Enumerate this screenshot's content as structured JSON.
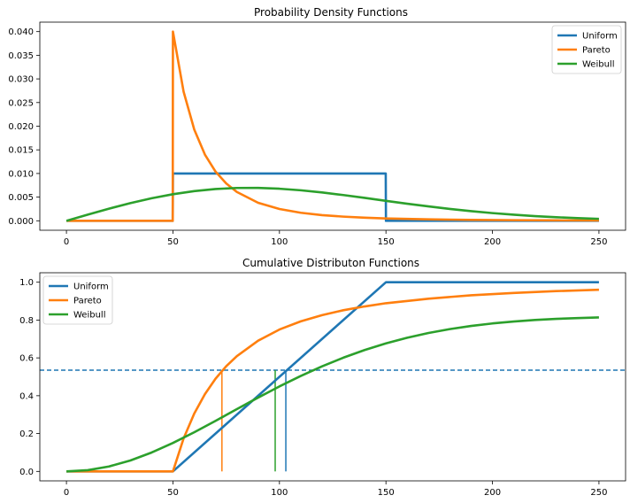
{
  "chart_data": [
    {
      "type": "line",
      "title": "Probability Density Functions",
      "xlabel": "",
      "ylabel": "",
      "xlim": [
        -12.5,
        262.5
      ],
      "ylim": [
        -0.002,
        0.042
      ],
      "xticks": [
        0,
        50,
        100,
        150,
        200,
        250
      ],
      "xtick_labels": [
        "0",
        "50",
        "100",
        "150",
        "200",
        "250"
      ],
      "yticks": [
        0.0,
        0.005,
        0.01,
        0.015,
        0.02,
        0.025,
        0.03,
        0.035,
        0.04
      ],
      "ytick_labels": [
        "0.000",
        "0.005",
        "0.010",
        "0.015",
        "0.020",
        "0.025",
        "0.030",
        "0.035",
        "0.040"
      ],
      "grid": false,
      "legend": "top-right",
      "series": [
        {
          "name": "Uniform",
          "color": "#1f77b4",
          "x": [
            0,
            49.9,
            50,
            100,
            149.9,
            150,
            200,
            250
          ],
          "y": [
            0,
            0,
            0.01,
            0.01,
            0.01,
            0,
            0,
            0
          ]
        },
        {
          "name": "Pareto",
          "color": "#ff7f0e",
          "x": [
            0,
            49.9,
            50,
            55,
            60,
            65,
            70,
            75,
            80,
            90,
            100,
            110,
            120,
            130,
            140,
            150,
            170,
            190,
            210,
            230,
            250
          ],
          "y": [
            0,
            0,
            0.04,
            0.0273,
            0.0193,
            0.014,
            0.0104,
            0.0079,
            0.0061,
            0.0038,
            0.0025,
            0.0017,
            0.0012,
            0.00088,
            0.00065,
            0.00049,
            0.0003,
            0.00019,
            0.00013,
            8.85e-05,
            6.4e-05
          ]
        },
        {
          "name": "Weibull",
          "color": "#2ca02c",
          "x": [
            0,
            10,
            20,
            30,
            40,
            50,
            60,
            70,
            80,
            90,
            100,
            110,
            120,
            130,
            140,
            150,
            160,
            170,
            180,
            190,
            200,
            210,
            220,
            230,
            240,
            250
          ],
          "y": [
            0,
            0.00131,
            0.00257,
            0.00374,
            0.00477,
            0.00562,
            0.00628,
            0.00672,
            0.00694,
            0.00695,
            0.00678,
            0.00645,
            0.00599,
            0.00544,
            0.00484,
            0.00422,
            0.00361,
            0.00304,
            0.00251,
            0.00204,
            0.00163,
            0.00128,
            0.00099,
            0.00075,
            0.00056,
            0.00041
          ]
        }
      ]
    },
    {
      "type": "line",
      "title": "Cumulative Distributon Functions",
      "xlabel": "",
      "ylabel": "",
      "xlim": [
        -12.5,
        262.5
      ],
      "ylim": [
        -0.05,
        1.05
      ],
      "xticks": [
        0,
        50,
        100,
        150,
        200,
        250
      ],
      "xtick_labels": [
        "0",
        "50",
        "100",
        "150",
        "200",
        "250"
      ],
      "yticks": [
        0.0,
        0.2,
        0.4,
        0.6,
        0.8,
        1.0
      ],
      "ytick_labels": [
        "0.0",
        "0.2",
        "0.4",
        "0.6",
        "0.8",
        "1.0"
      ],
      "grid": false,
      "legend": "top-left",
      "series": [
        {
          "name": "Uniform",
          "color": "#1f77b4",
          "x": [
            0,
            50,
            150,
            250
          ],
          "y": [
            0,
            0,
            1,
            1
          ]
        },
        {
          "name": "Pareto",
          "color": "#ff7f0e",
          "x": [
            0,
            50,
            55,
            60,
            65,
            70,
            75,
            80,
            90,
            100,
            110,
            120,
            130,
            140,
            150,
            170,
            190,
            210,
            230,
            250
          ],
          "y": [
            0,
            0,
            0.174,
            0.306,
            0.408,
            0.49,
            0.556,
            0.609,
            0.691,
            0.75,
            0.793,
            0.826,
            0.852,
            0.872,
            0.889,
            0.913,
            0.931,
            0.943,
            0.953,
            0.96
          ]
        },
        {
          "name": "Weibull",
          "color": "#2ca02c",
          "x": [
            0,
            10,
            20,
            30,
            40,
            50,
            60,
            70,
            80,
            90,
            100,
            110,
            120,
            130,
            140,
            150,
            160,
            170,
            180,
            190,
            200,
            210,
            220,
            230,
            240,
            250
          ],
          "y": [
            0,
            0.0066,
            0.0262,
            0.0578,
            0.0999,
            0.1504,
            0.2069,
            0.2673,
            0.3291,
            0.3903,
            0.4492,
            0.5045,
            0.5554,
            0.6011,
            0.6415,
            0.6767,
            0.7066,
            0.7317,
            0.7523,
            0.7689,
            0.7821,
            0.7924,
            0.8003,
            0.8062,
            0.8106,
            0.8138
          ]
        }
      ],
      "hline": {
        "y": 0.535,
        "color": "#1f77b4",
        "style": "dashed"
      },
      "vlines": [
        {
          "x": 73,
          "y": 0.535,
          "color": "#ff7f0e"
        },
        {
          "x": 98,
          "y": 0.535,
          "color": "#2ca02c"
        },
        {
          "x": 103,
          "y": 0.535,
          "color": "#1f77b4"
        }
      ]
    }
  ]
}
